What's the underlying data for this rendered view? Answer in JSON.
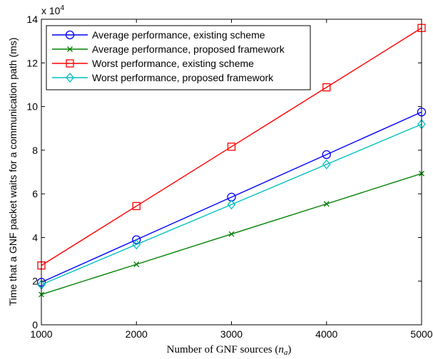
{
  "chart_data": {
    "type": "line",
    "title": "",
    "xlabel_prefix": "Number of GNF sources (",
    "xlabel_symbol": "n",
    "xlabel_subscript": "a",
    "xlabel_suffix": ")",
    "ylabel": "Time that a GNF packet waits for a communication path (ms)",
    "y_multiplier_base": "x 10",
    "y_multiplier_exp": "4",
    "xlim": [
      1000,
      5000
    ],
    "ylim": [
      0,
      140000
    ],
    "xticks": [
      1000,
      2000,
      3000,
      4000,
      5000
    ],
    "yticks": [
      0,
      20000,
      40000,
      60000,
      80000,
      100000,
      120000,
      140000
    ],
    "ytick_labels": [
      "0",
      "2",
      "4",
      "6",
      "8",
      "10",
      "12",
      "14"
    ],
    "x": [
      1000,
      2000,
      3000,
      4000,
      5000
    ],
    "legend_position": "top-left",
    "grid": false,
    "series": [
      {
        "name": "Average performance, existing scheme",
        "color": "#0000ff",
        "marker": "circle",
        "values": [
          19500,
          39000,
          58500,
          78000,
          97500
        ]
      },
      {
        "name": "Average performance, proposed framework",
        "color": "#008000",
        "marker": "x",
        "values": [
          13900,
          27700,
          41600,
          55400,
          69300
        ]
      },
      {
        "name": "Worst performance, existing scheme",
        "color": "#ff0000",
        "marker": "square",
        "values": [
          27200,
          54400,
          81600,
          108800,
          136000
        ]
      },
      {
        "name": "Worst performance, proposed framework",
        "color": "#00bfbf",
        "marker": "diamond",
        "values": [
          18400,
          36800,
          55100,
          73500,
          91900
        ]
      }
    ]
  }
}
